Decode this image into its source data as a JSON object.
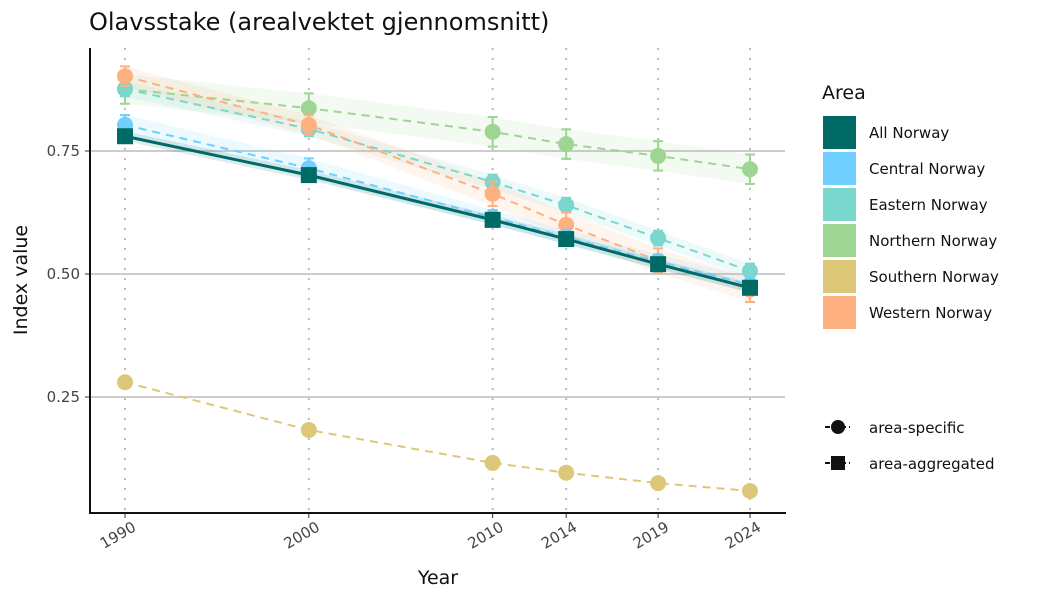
{
  "chart_data": {
    "type": "line",
    "title": "Olavsstake (arealvektet gjennomsnitt)",
    "xlabel": "Year",
    "ylabel": "Index value",
    "x": [
      1990,
      2000,
      2010,
      2014,
      2019,
      2024
    ],
    "ylim": [
      0.03,
      0.95
    ],
    "yticks": [
      0.25,
      0.5,
      0.75
    ],
    "ytick_labels": [
      "0.25",
      "0.50",
      "0.75"
    ],
    "xtick_labels": [
      "1990",
      "2000",
      "2010",
      "2014",
      "2019",
      "2024"
    ],
    "legend_title": "Area",
    "legend_position": "right",
    "series": [
      {
        "name": "All Norway",
        "color": "#006A66",
        "marker": "square",
        "style": "solid",
        "values": [
          0.78,
          0.701,
          0.61,
          0.571,
          0.52,
          0.472
        ],
        "ci": [
          0.01,
          0.01,
          0.01,
          0.01,
          0.01,
          0.01
        ]
      },
      {
        "name": "Central Norway",
        "color": "#6FCFFF",
        "marker": "circle",
        "style": "dashed",
        "values": [
          0.803,
          0.715,
          0.615,
          0.575,
          0.525,
          0.478
        ],
        "ci": [
          0.02,
          0.02,
          0.015,
          0.015,
          0.015,
          0.015
        ]
      },
      {
        "name": "Eastern Norway",
        "color": "#7AD7CE",
        "marker": "circle",
        "style": "dashed",
        "values": [
          0.876,
          0.795,
          0.687,
          0.64,
          0.573,
          0.506
        ],
        "ci": [
          0.015,
          0.015,
          0.015,
          0.015,
          0.015,
          0.015
        ]
      },
      {
        "name": "Northern Norway",
        "color": "#9ED593",
        "marker": "circle",
        "style": "dashed",
        "values": [
          0.876,
          0.837,
          0.789,
          0.764,
          0.74,
          0.713
        ],
        "ci": [
          0.03,
          0.03,
          0.03,
          0.03,
          0.03,
          0.03
        ]
      },
      {
        "name": "Southern Norway",
        "color": "#DCC878",
        "marker": "circle",
        "style": "dashed",
        "values": [
          0.28,
          0.183,
          0.116,
          0.096,
          0.075,
          0.059
        ],
        "ci": [
          0,
          0,
          0,
          0,
          0,
          0
        ]
      },
      {
        "name": "Western Norway",
        "color": "#FFB080",
        "marker": "circle",
        "style": "dashed",
        "values": [
          0.902,
          0.803,
          0.663,
          0.6,
          0.527,
          0.468
        ],
        "ci": [
          0.02,
          0.02,
          0.025,
          0.025,
          0.025,
          0.025
        ]
      }
    ],
    "shape_legend": [
      {
        "label": "area-specific",
        "marker": "circle"
      },
      {
        "label": "area-aggregated",
        "marker": "square"
      }
    ]
  }
}
